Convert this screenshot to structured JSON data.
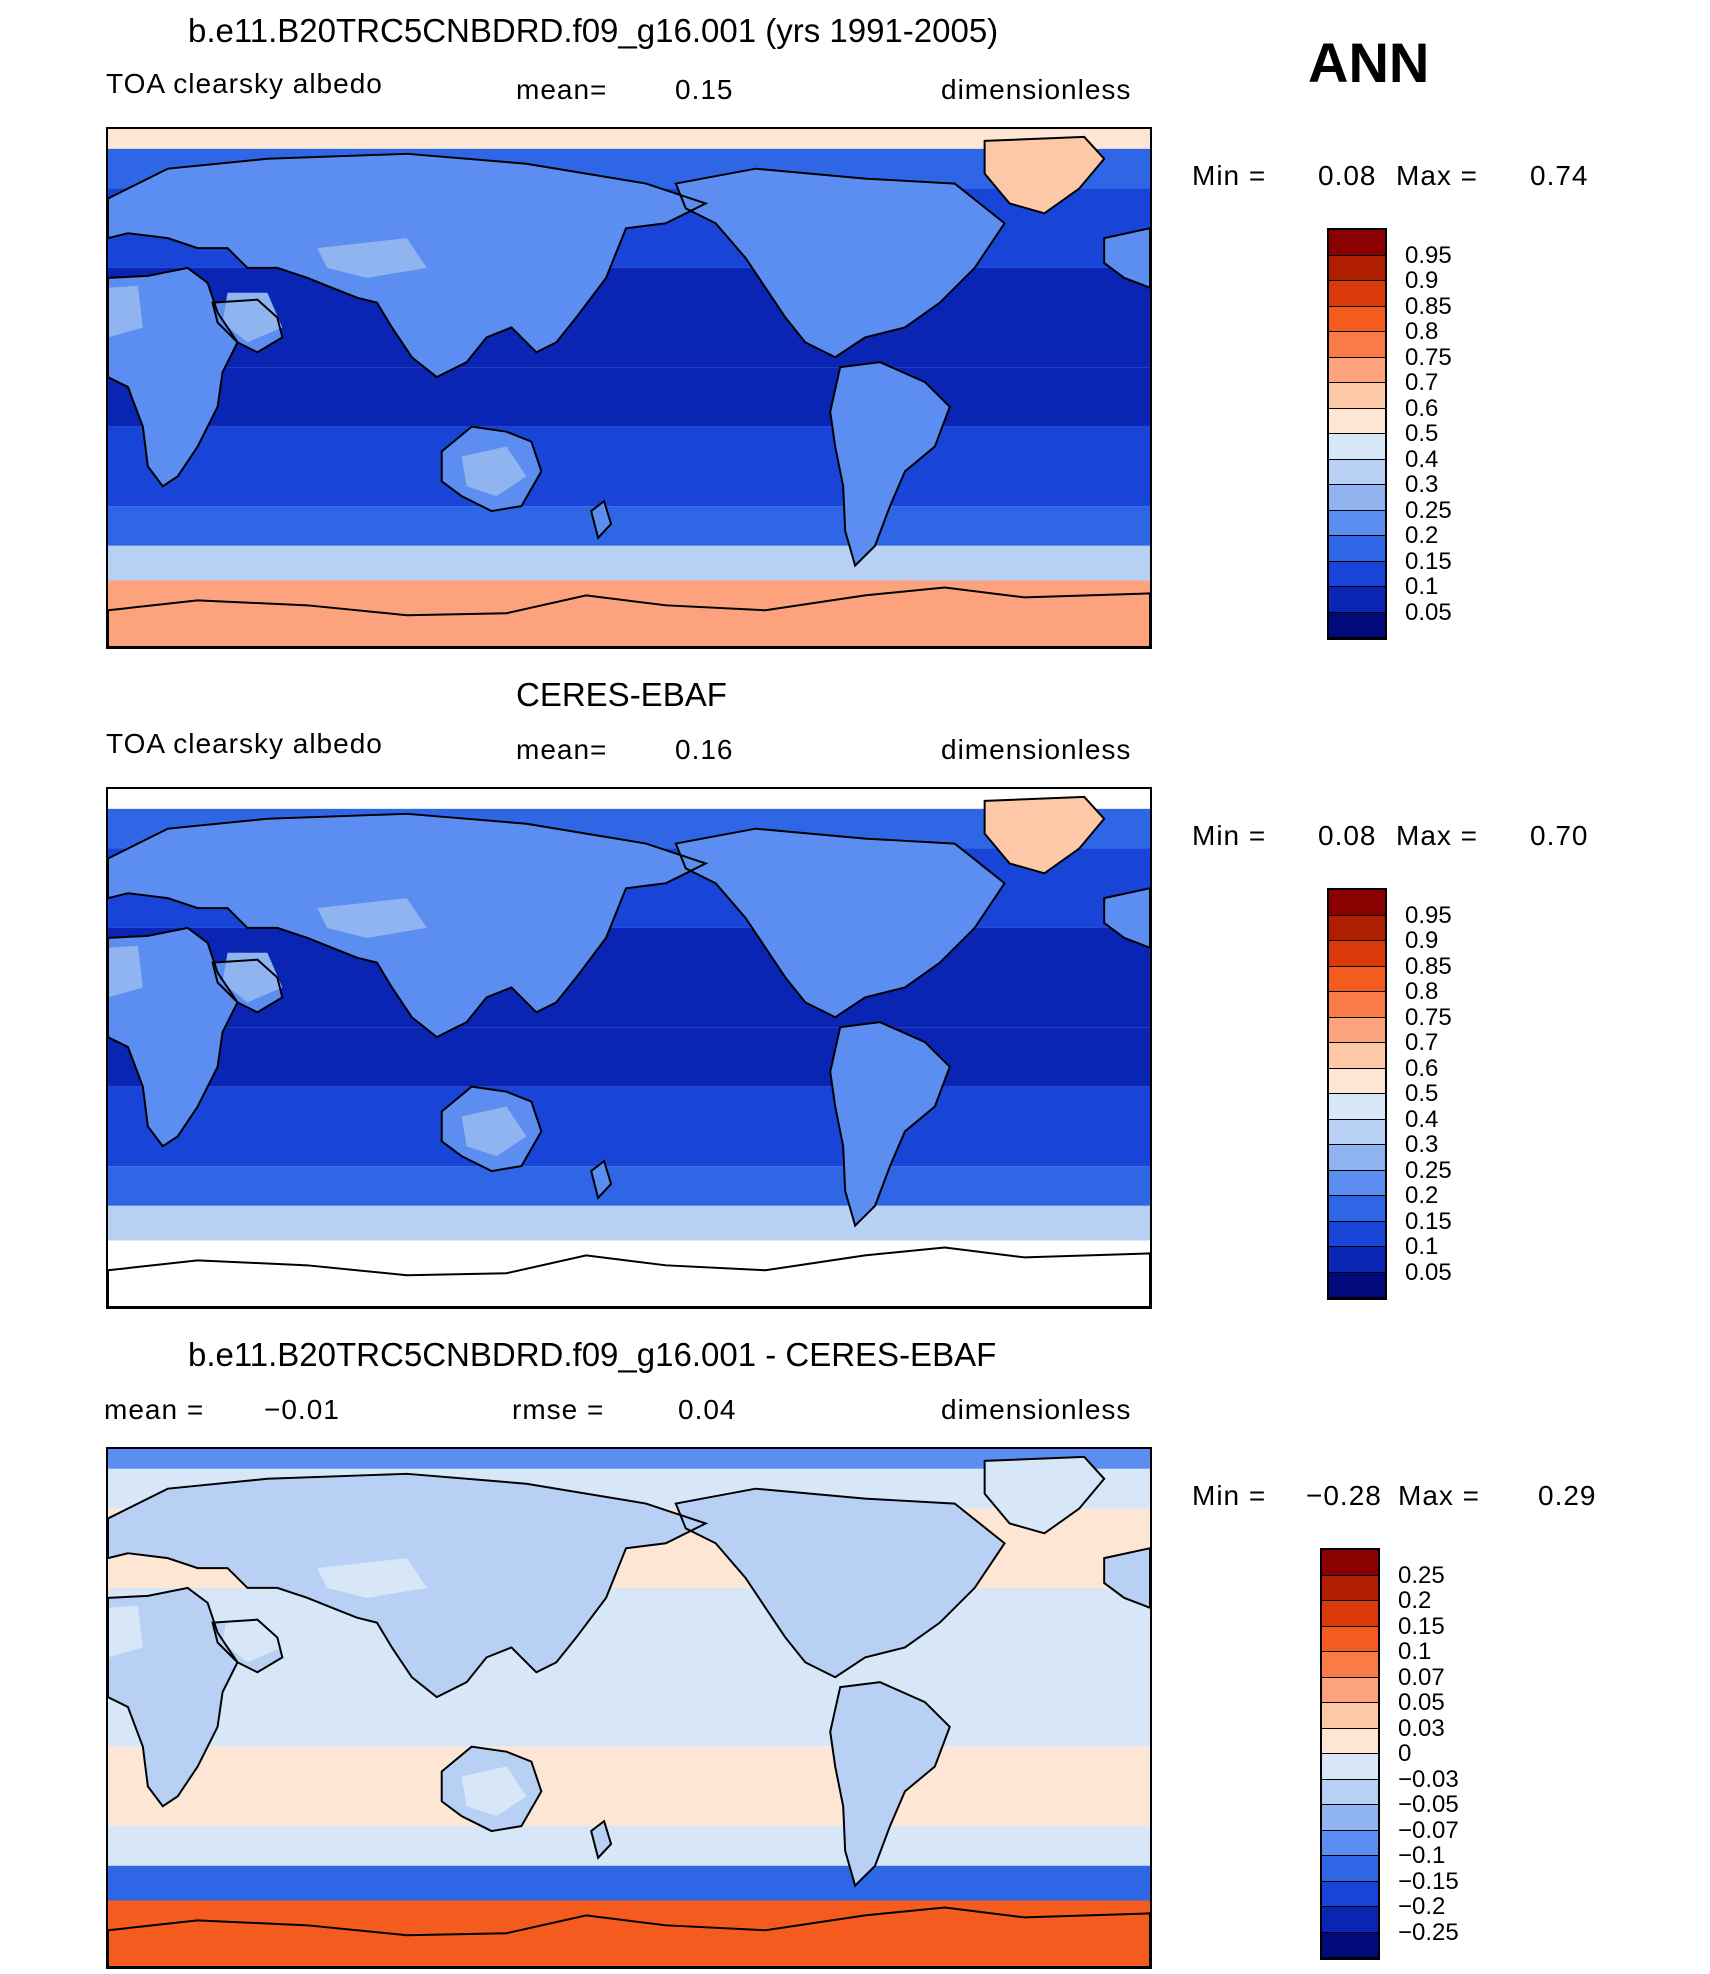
{
  "season": "ANN",
  "panels": [
    {
      "id": "model",
      "title": "b.e11.B20TRC5CNBDRD.f09_g16.001 (yrs 1991-2005)",
      "left_label": "TOA clearsky albedo",
      "mid_label": "mean=",
      "mid_value": "0.15",
      "units": "dimensionless",
      "min_label": "Min =",
      "min_value": "0.08",
      "max_label": "Max =",
      "max_value": "0.74",
      "colorbar": [
        "0.95",
        "0.9",
        "0.85",
        "0.8",
        "0.75",
        "0.7",
        "0.6",
        "0.5",
        "0.4",
        "0.3",
        "0.25",
        "0.2",
        "0.15",
        "0.1",
        "0.05"
      ],
      "colors": [
        "#8b0000",
        "#b01e00",
        "#d83a0a",
        "#f55a1e",
        "#fb7b46",
        "#fca27c",
        "#fdc8a8",
        "#fde6d4",
        "#d7e7f8",
        "#b7d0f4",
        "#8fb4f0",
        "#5b8ef0",
        "#2f66e6",
        "#1844d8",
        "#0a24b4",
        "#000a7a"
      ],
      "field_colors": {
        "ocean_trop": "#0a24b4",
        "ocean_sub": "#1844d8",
        "ocean_mid": "#2f66e6",
        "land": "#5b8ef0",
        "desert": "#8fb4f0",
        "ice_n": "#fde6d4",
        "greenland": "#fdc8a8",
        "ice_s": "#fca27c",
        "band_s": "#b7d0f4"
      }
    },
    {
      "id": "obs",
      "title": "CERES-EBAF",
      "left_label": "TOA clearsky albedo",
      "mid_label": "mean=",
      "mid_value": "0.16",
      "units": "dimensionless",
      "min_label": "Min =",
      "min_value": "0.08",
      "max_label": "Max =",
      "max_value": "0.70",
      "colorbar": [
        "0.95",
        "0.9",
        "0.85",
        "0.8",
        "0.75",
        "0.7",
        "0.6",
        "0.5",
        "0.4",
        "0.3",
        "0.25",
        "0.2",
        "0.15",
        "0.1",
        "0.05"
      ],
      "colors": [
        "#8b0000",
        "#b01e00",
        "#d83a0a",
        "#f55a1e",
        "#fb7b46",
        "#fca27c",
        "#fdc8a8",
        "#fde6d4",
        "#d7e7f8",
        "#b7d0f4",
        "#8fb4f0",
        "#5b8ef0",
        "#2f66e6",
        "#1844d8",
        "#0a24b4",
        "#000a7a"
      ],
      "field_colors": {
        "ocean_trop": "#0a24b4",
        "ocean_sub": "#1844d8",
        "ocean_mid": "#2f66e6",
        "land": "#5b8ef0",
        "desert": "#8fb4f0",
        "ice_n": "#ffffff",
        "greenland": "#fdc8a8",
        "ice_s": "#ffffff",
        "band_s": "#b7d0f4"
      }
    },
    {
      "id": "diff",
      "title": "b.e11.B20TRC5CNBDRD.f09_g16.001 - CERES-EBAF",
      "left_label": "mean =",
      "left_value": "−0.01",
      "mid_label": "rmse =",
      "mid_value": "0.04",
      "units": "dimensionless",
      "min_label": "Min =",
      "min_value": "−0.28",
      "max_label": "Max =",
      "max_value": "0.29",
      "colorbar": [
        "0.25",
        "0.2",
        "0.15",
        "0.1",
        "0.07",
        "0.05",
        "0.03",
        "0",
        "−0.03",
        "−0.05",
        "−0.07",
        "−0.1",
        "−0.15",
        "−0.2",
        "−0.25"
      ],
      "colors": [
        "#8b0000",
        "#b01e00",
        "#d83a0a",
        "#f55a1e",
        "#fb7b46",
        "#fca27c",
        "#fdc8a8",
        "#fde6d4",
        "#d7e7f8",
        "#b7d0f4",
        "#8fb4f0",
        "#5b8ef0",
        "#2f66e6",
        "#1844d8",
        "#0a24b4",
        "#000a7a"
      ],
      "field_colors": {
        "ocean_trop": "#d7e7f8",
        "ocean_sub": "#fde6d4",
        "ocean_mid": "#d7e7f8",
        "land": "#b7d0f4",
        "desert": "#d7e7f8",
        "ice_n": "#5b8ef0",
        "greenland": "#d7e7f8",
        "ice_s": "#f55a1e",
        "band_s": "#2f66e6"
      }
    }
  ]
}
